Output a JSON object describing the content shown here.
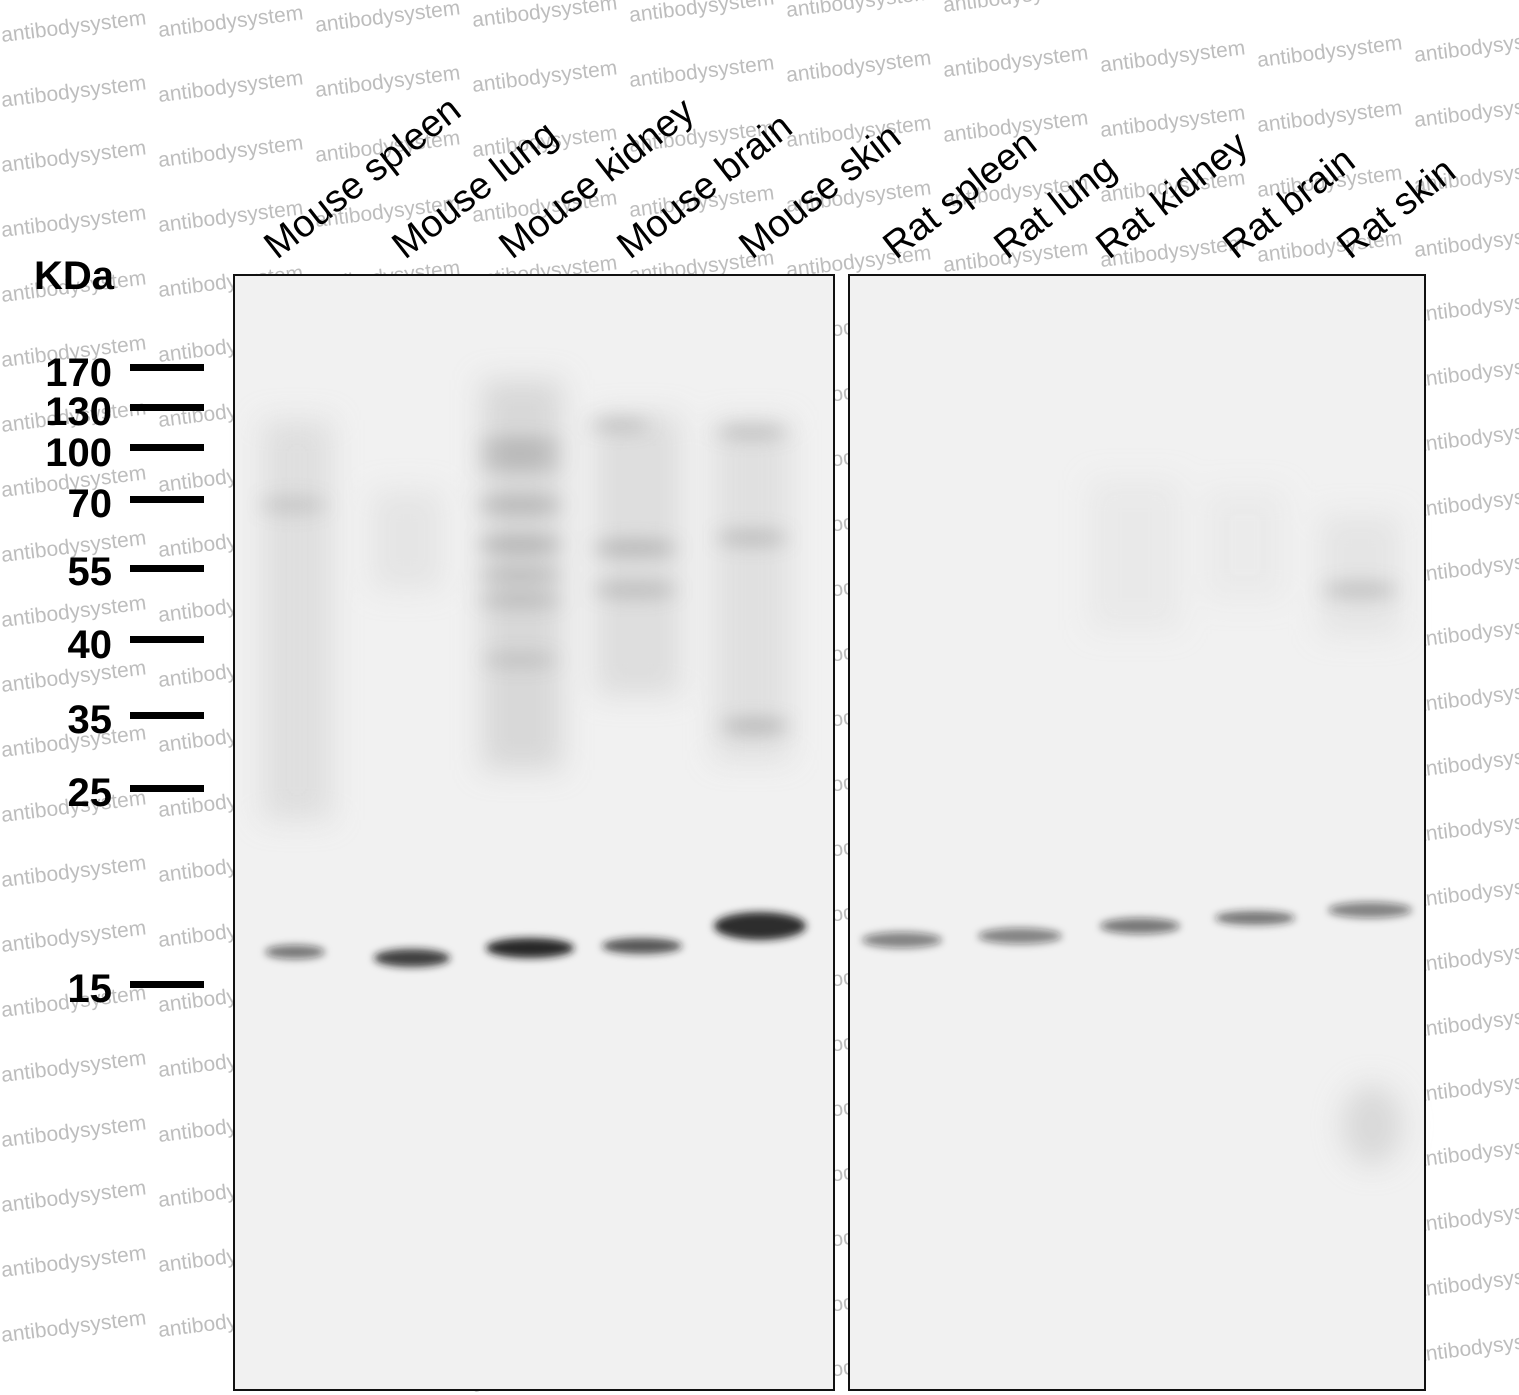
{
  "watermark_text": "antibodysystem",
  "unit_label": "KDa",
  "markers": [
    "170",
    "130",
    "100",
    "70",
    "55",
    "40",
    "35",
    "25",
    "15"
  ],
  "lanes": [
    "Mouse spleen",
    "Mouse lung",
    "Mouse kidney",
    "Mouse brain",
    "Mouse skin",
    "Rat spleen",
    "Rat lung",
    "Rat kidney",
    "Rat brain",
    "Rat skin"
  ],
  "colors": {
    "band": "#1a1a1a",
    "membrane": "#f1f1f1",
    "frame": "#111111",
    "watermark": "#bdbdbd"
  }
}
